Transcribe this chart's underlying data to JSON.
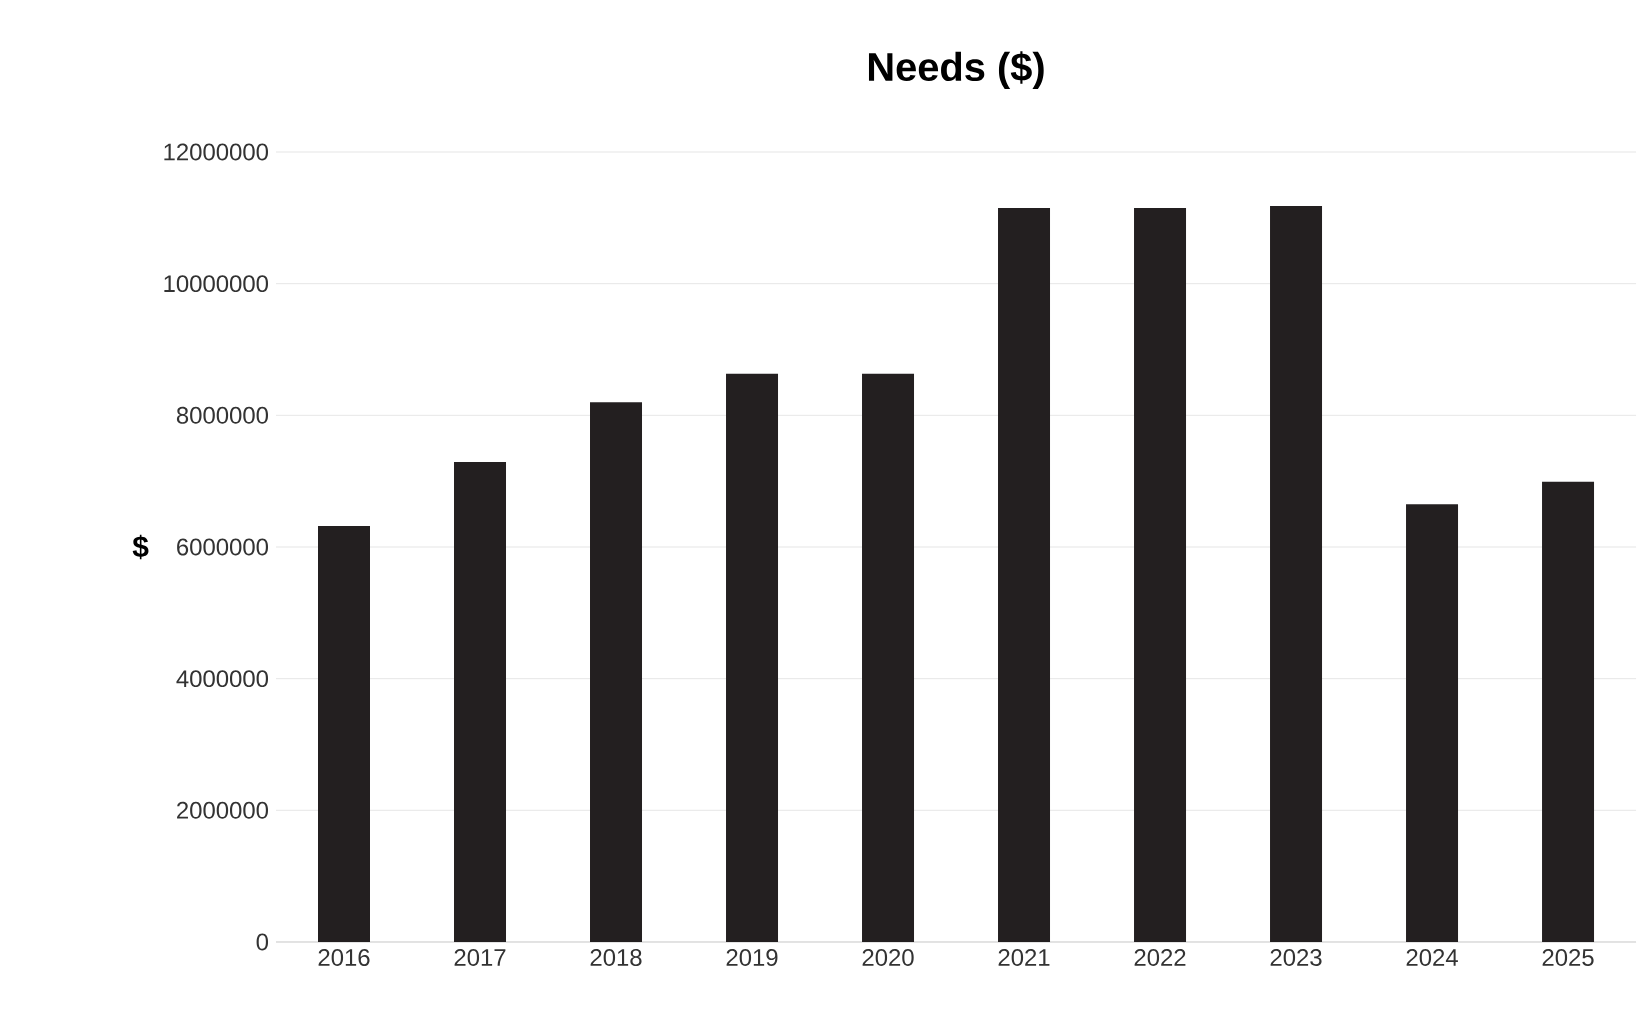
{
  "chart_data": {
    "type": "bar",
    "title": "Needs ($)",
    "ylabel": "$",
    "categories": [
      "2016",
      "2017",
      "2018",
      "2019",
      "2020",
      "2021",
      "2022",
      "2023",
      "2024",
      "2025"
    ],
    "values": [
      6320000,
      7290000,
      8200000,
      8630000,
      8630000,
      11150000,
      11150000,
      11180000,
      6650000,
      6990000
    ],
    "color": "#231f20",
    "ylim": [
      0,
      12000000
    ],
    "yticks": [
      0,
      2000000,
      4000000,
      6000000,
      8000000,
      10000000,
      12000000
    ],
    "grid": "y"
  }
}
